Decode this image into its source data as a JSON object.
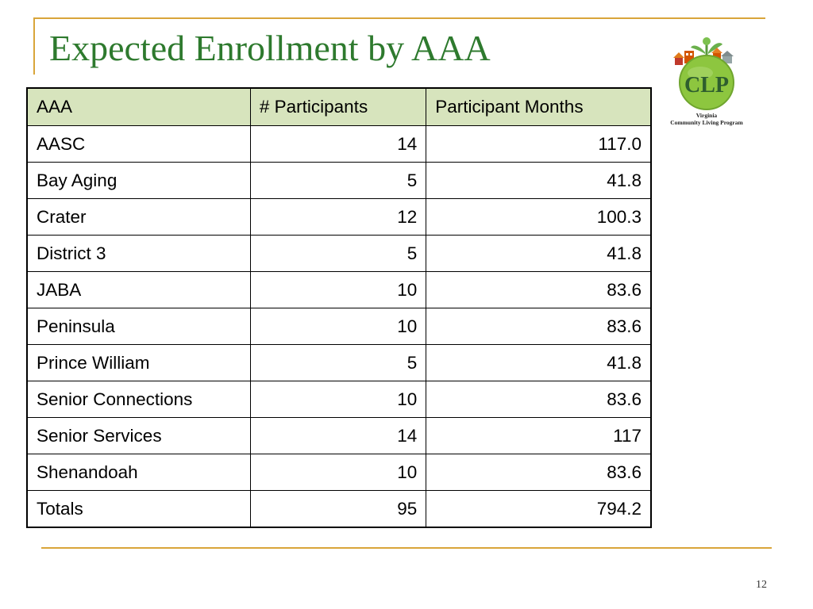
{
  "slide": {
    "title": "Expected Enrollment by AAA",
    "number": "12"
  },
  "logo": {
    "text": "CLP",
    "caption_line1": "Virginia",
    "caption_line2": "Community Living Program",
    "colors": {
      "circle": "#8dc63f",
      "text": "#2e5e2e",
      "accent": "#e07b1a"
    }
  },
  "table": {
    "headers": [
      "AAA",
      "# Participants",
      "Participant Months"
    ],
    "rows": [
      {
        "aaa": "AASC",
        "participants": "14",
        "months": "117.0"
      },
      {
        "aaa": "Bay Aging",
        "participants": "5",
        "months": "41.8"
      },
      {
        "aaa": "Crater",
        "participants": "12",
        "months": "100.3"
      },
      {
        "aaa": "District 3",
        "participants": "5",
        "months": "41.8"
      },
      {
        "aaa": "JABA",
        "participants": "10",
        "months": "83.6"
      },
      {
        "aaa": "Peninsula",
        "participants": "10",
        "months": "83.6"
      },
      {
        "aaa": "Prince William",
        "participants": "5",
        "months": "41.8"
      },
      {
        "aaa": "Senior Connections",
        "participants": "10",
        "months": "83.6"
      },
      {
        "aaa": "Senior Services",
        "participants": "14",
        "months": "117"
      },
      {
        "aaa": "Shenandoah",
        "participants": "10",
        "months": "83.6"
      },
      {
        "aaa": "Totals",
        "participants": "95",
        "months": "794.2"
      }
    ],
    "header_bg": "#d7e4bd"
  },
  "theme": {
    "accent_line": "#d9a53a",
    "title_color": "#2e7a2e"
  }
}
